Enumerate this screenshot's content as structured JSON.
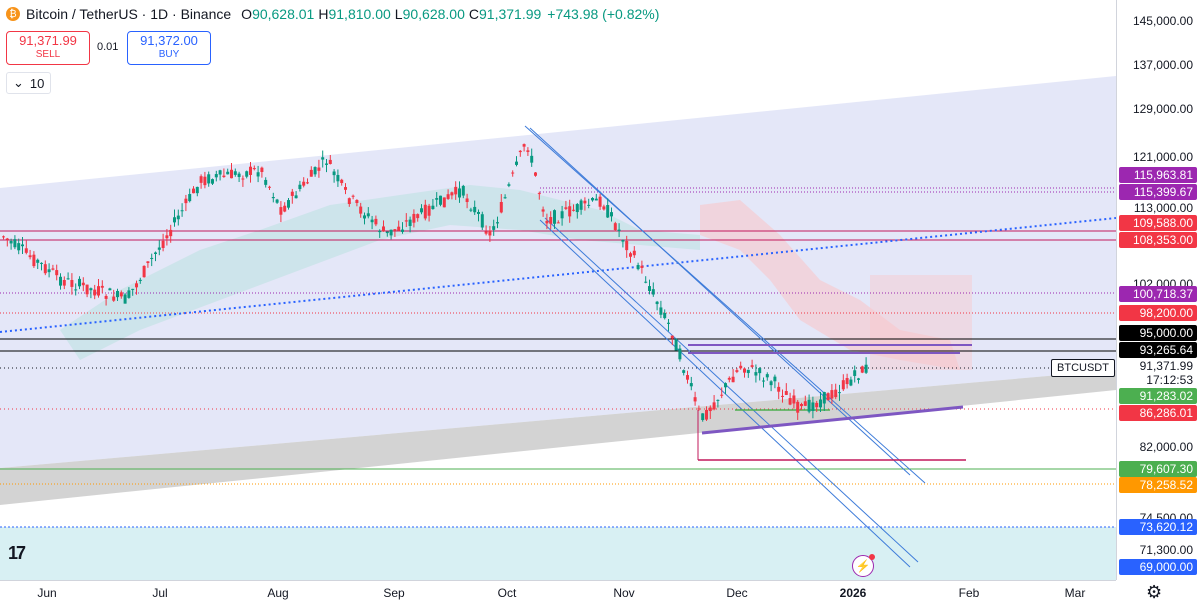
{
  "header": {
    "title": "Bitcoin / TetherUS · 1D · Binance",
    "open_label": "O",
    "open": "90,628.01",
    "high_label": "H",
    "high": "91,810.00",
    "low_label": "L",
    "low": "90,628.00",
    "close_label": "C",
    "close": "91,371.99",
    "change": "+743.98 (+0.82%)"
  },
  "trade": {
    "sell_price": "91,371.99",
    "sell_label": "SELL",
    "spread": "0.01",
    "buy_price": "91,372.00",
    "buy_label": "BUY"
  },
  "indicator": {
    "value": "10"
  },
  "colors": {
    "up": "#089981",
    "down": "#f23645",
    "accent": "#2962ff",
    "channel_fill": "#dfe3f7",
    "support_band": "#c8c8c8"
  },
  "price_axis": {
    "ticks": [
      "145,000.00",
      "137,000.00",
      "129,000.00",
      "121,000.00",
      "113,000.00",
      "102,000.00",
      "82,000.00",
      "74,500.00",
      "71,300.00"
    ],
    "labels": [
      {
        "text": "115,963.81",
        "color": "#9c27b0"
      },
      {
        "text": "115,399.67",
        "color": "#9c27b0"
      },
      {
        "text": "109,588.00",
        "color": "#f23645"
      },
      {
        "text": "108,353.00",
        "color": "#f23645"
      },
      {
        "text": "100,718.37",
        "color": "#9c27b0"
      },
      {
        "text": "98,200.00",
        "color": "#f23645"
      },
      {
        "text": "95,000.00",
        "color": "#000000"
      },
      {
        "text": "93,265.64",
        "color": "#000000"
      },
      {
        "text": "91,371.99",
        "color": "light"
      },
      {
        "text": "17:12:53",
        "color": "light"
      },
      {
        "text": "91,283.02",
        "color": "#4caf50"
      },
      {
        "text": "86,286.01",
        "color": "#f23645"
      },
      {
        "text": "79,607.30",
        "color": "#4caf50"
      },
      {
        "text": "78,258.52",
        "color": "#ff9800"
      },
      {
        "text": "73,620.12",
        "color": "#2962ff"
      },
      {
        "text": "69,000.00",
        "color": "#2962ff"
      }
    ],
    "symbol_tag": "BTCUSDT"
  },
  "time_axis": {
    "months": [
      "Jun",
      "Jul",
      "Aug",
      "Sep",
      "Oct",
      "Nov",
      "Dec",
      "2026",
      "Feb",
      "Mar"
    ]
  },
  "icons": {
    "logo": "tradingview-logo",
    "settings": "gear-icon",
    "alert": "lightning-icon"
  }
}
